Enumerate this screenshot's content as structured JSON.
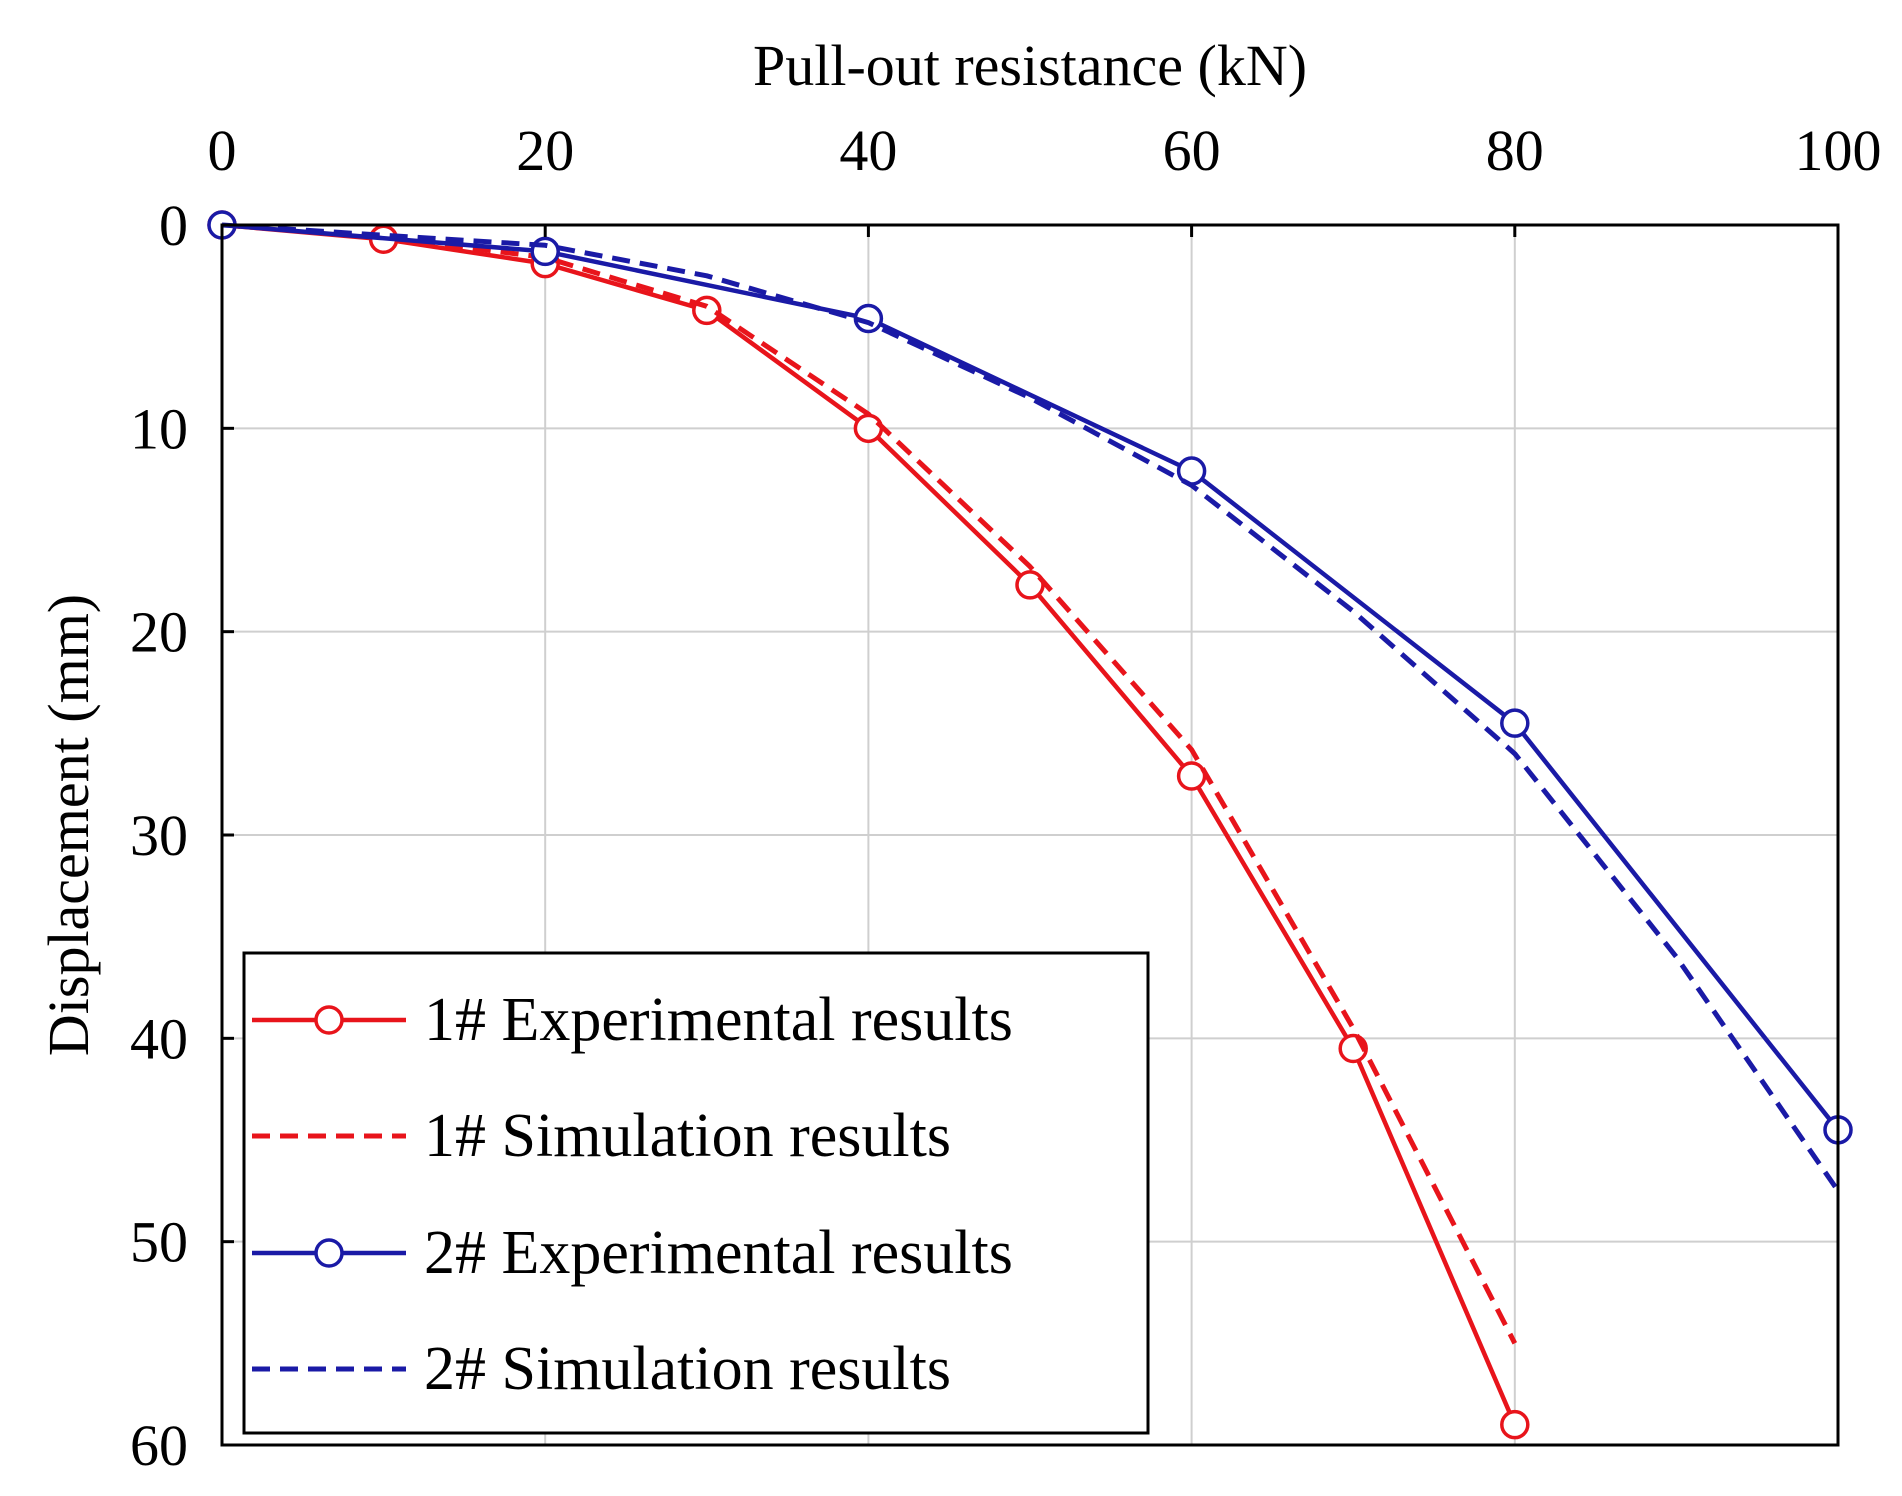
{
  "chart_data": {
    "type": "line",
    "xlabel": "Pull-out resistance (kN)",
    "ylabel": "Displacement (mm)",
    "xlim": [
      0,
      100
    ],
    "ylim": [
      0,
      60
    ],
    "y_inverted": true,
    "x_axis_position": "top",
    "grid": true,
    "legend_position": "bottom-left",
    "x_ticks": [
      0,
      20,
      40,
      60,
      80,
      100
    ],
    "y_ticks": [
      0,
      10,
      20,
      30,
      40,
      50,
      60
    ],
    "series": [
      {
        "name": "1# Experimental results",
        "color": "#e8141b",
        "style": "solid",
        "marker": "circle",
        "x": [
          0,
          10,
          20,
          30,
          40,
          50,
          60,
          70,
          80
        ],
        "y": [
          0,
          0.7,
          1.9,
          4.2,
          10.0,
          17.7,
          27.1,
          40.5,
          59.0
        ]
      },
      {
        "name": "1# Simulation results",
        "color": "#e8141b",
        "style": "dashed",
        "marker": "none",
        "x": [
          0,
          10,
          20,
          30,
          40,
          50,
          60,
          70,
          80
        ],
        "y": [
          0,
          0.6,
          1.6,
          4.0,
          9.3,
          16.8,
          25.8,
          39.5,
          55.0
        ]
      },
      {
        "name": "2# Experimental results",
        "color": "#1a1aa6",
        "style": "solid",
        "marker": "circle",
        "x": [
          0,
          20,
          40,
          60,
          80,
          100
        ],
        "y": [
          0,
          1.3,
          4.6,
          12.1,
          24.5,
          44.5
        ]
      },
      {
        "name": "2# Simulation results",
        "color": "#1a1aa6",
        "style": "dashed",
        "marker": "none",
        "x": [
          0,
          10,
          20,
          30,
          40,
          50,
          60,
          70,
          80,
          90,
          100
        ],
        "y": [
          0,
          0.5,
          1.0,
          2.5,
          4.8,
          8.5,
          12.8,
          19.0,
          26.0,
          36.0,
          47.5
        ]
      }
    ]
  }
}
